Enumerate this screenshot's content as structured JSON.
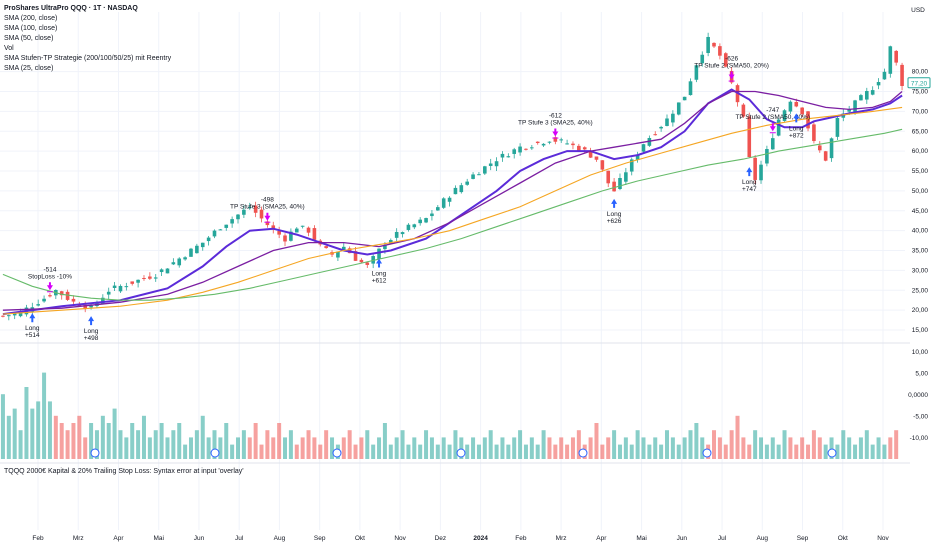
{
  "header": {
    "title": "ProShares UltraPro QQQ · 1T · NASDAQ",
    "indicators": [
      "SMA (200, close)",
      "SMA (100, close)",
      "SMA (50, close)",
      "Vol",
      "SMA Stufen-TP Strategie (200/100/50/25) mit Reentry",
      "SMA (25, close)"
    ]
  },
  "error_text": "TQQQ 2000€ Kapital & 20% Trailing Stop Loss: Syntax error at input 'overlay'",
  "colors": {
    "up": "#26a69a",
    "down": "#ef5350",
    "sma200": "#66bb6a",
    "sma100": "#f5a623",
    "sma50": "#7b1fa2",
    "sma25": "#5b2bd9",
    "arrow_long": "#2962ff",
    "arrow_tp": "#d500f9",
    "price_tag": "#26a69a"
  },
  "chart_data": {
    "type": "line",
    "price_axis": {
      "currency": "USD",
      "ticks": [
        "80,00",
        "75,00",
        "70,00",
        "65,00",
        "60,00",
        "55,00",
        "50,00",
        "45,00",
        "40,00",
        "35,00",
        "30,00",
        "25,00",
        "20,00",
        "15,00"
      ],
      "range": [
        13,
        95
      ]
    },
    "volume_axis": {
      "ticks": [
        "10,00",
        "5,00",
        "0,0000",
        "-5,00",
        "-10,00"
      ]
    },
    "time_axis": {
      "ticks": [
        "Feb",
        "Mrz",
        "Apr",
        "Mai",
        "Jun",
        "Jul",
        "Aug",
        "Sep",
        "Okt",
        "Nov",
        "Dez",
        "2024",
        "Feb",
        "Mrz",
        "Apr",
        "Mai",
        "Jun",
        "Jul",
        "Aug",
        "Sep",
        "Okt",
        "Nov"
      ]
    },
    "last_price": "77,20",
    "price_series": [
      {
        "name": "Close",
        "points": [
          [
            0,
            18.5
          ],
          [
            3,
            19.5
          ],
          [
            7,
            23
          ],
          [
            9,
            25
          ],
          [
            12,
            22
          ],
          [
            15,
            20.5
          ],
          [
            18,
            25
          ],
          [
            22,
            27
          ],
          [
            26,
            29
          ],
          [
            30,
            33
          ],
          [
            34,
            37
          ],
          [
            37,
            41
          ],
          [
            40,
            44
          ],
          [
            42,
            46
          ],
          [
            44,
            43
          ],
          [
            46,
            40
          ],
          [
            48,
            38
          ],
          [
            50,
            41
          ],
          [
            52,
            40
          ],
          [
            54,
            36
          ],
          [
            56,
            34
          ],
          [
            58,
            36
          ],
          [
            60,
            33
          ],
          [
            62,
            31
          ],
          [
            63,
            33
          ],
          [
            65,
            37
          ],
          [
            68,
            40
          ],
          [
            72,
            43
          ],
          [
            76,
            49
          ],
          [
            80,
            54
          ],
          [
            84,
            58
          ],
          [
            88,
            61
          ],
          [
            91,
            62
          ],
          [
            93,
            63
          ],
          [
            96,
            62
          ],
          [
            99,
            60
          ],
          [
            101,
            58
          ],
          [
            103,
            52
          ],
          [
            104,
            50
          ],
          [
            106,
            55
          ],
          [
            109,
            62
          ],
          [
            113,
            68
          ],
          [
            116,
            74
          ],
          [
            118,
            82
          ],
          [
            120,
            88
          ],
          [
            122,
            84
          ],
          [
            124,
            77
          ],
          [
            126,
            68
          ],
          [
            127,
            58
          ],
          [
            128,
            53
          ],
          [
            130,
            60
          ],
          [
            132,
            68
          ],
          [
            134,
            73
          ],
          [
            136,
            70
          ],
          [
            138,
            62
          ],
          [
            140,
            58
          ],
          [
            142,
            68
          ],
          [
            145,
            72
          ],
          [
            148,
            76
          ],
          [
            150,
            80
          ],
          [
            151,
            86
          ],
          [
            152,
            82
          ],
          [
            153,
            77
          ]
        ]
      },
      {
        "name": "SMA (25, close)",
        "points": [
          [
            0,
            19
          ],
          [
            10,
            21
          ],
          [
            20,
            22.5
          ],
          [
            28,
            25.5
          ],
          [
            34,
            31
          ],
          [
            38,
            36
          ],
          [
            42,
            40
          ],
          [
            46,
            40.5
          ],
          [
            50,
            39
          ],
          [
            54,
            37
          ],
          [
            58,
            35
          ],
          [
            62,
            34
          ],
          [
            66,
            35
          ],
          [
            72,
            38
          ],
          [
            78,
            44
          ],
          [
            84,
            50
          ],
          [
            88,
            55
          ],
          [
            92,
            58
          ],
          [
            96,
            60
          ],
          [
            100,
            60
          ],
          [
            104,
            58
          ],
          [
            108,
            59
          ],
          [
            112,
            61
          ],
          [
            116,
            65
          ],
          [
            120,
            72
          ],
          [
            124,
            75.5
          ],
          [
            127,
            73
          ],
          [
            130,
            68
          ],
          [
            133,
            66
          ],
          [
            136,
            66
          ],
          [
            138,
            67.5
          ],
          [
            141,
            68.5
          ],
          [
            144,
            69.5
          ],
          [
            148,
            70.5
          ],
          [
            151,
            72
          ],
          [
            153,
            74
          ]
        ]
      },
      {
        "name": "SMA (50, close)",
        "points": [
          [
            0,
            20
          ],
          [
            10,
            20.5
          ],
          [
            20,
            22
          ],
          [
            28,
            24
          ],
          [
            34,
            27
          ],
          [
            40,
            31
          ],
          [
            46,
            35
          ],
          [
            52,
            37
          ],
          [
            58,
            37
          ],
          [
            64,
            36
          ],
          [
            70,
            38
          ],
          [
            76,
            42
          ],
          [
            82,
            47
          ],
          [
            88,
            52
          ],
          [
            94,
            57
          ],
          [
            100,
            60
          ],
          [
            104,
            61
          ],
          [
            108,
            62
          ],
          [
            112,
            63
          ],
          [
            116,
            67
          ],
          [
            120,
            72
          ],
          [
            124,
            75
          ],
          [
            128,
            75
          ],
          [
            132,
            74
          ],
          [
            136,
            72.5
          ],
          [
            140,
            71
          ],
          [
            144,
            70.5
          ],
          [
            148,
            71
          ],
          [
            151,
            72.5
          ],
          [
            153,
            75
          ]
        ]
      },
      {
        "name": "SMA (100, close)",
        "points": [
          [
            0,
            19
          ],
          [
            10,
            20
          ],
          [
            20,
            21
          ],
          [
            28,
            22.5
          ],
          [
            34,
            24.5
          ],
          [
            40,
            27
          ],
          [
            46,
            30
          ],
          [
            52,
            33
          ],
          [
            58,
            35
          ],
          [
            64,
            36.5
          ],
          [
            70,
            38
          ],
          [
            76,
            40
          ],
          [
            82,
            43
          ],
          [
            88,
            46
          ],
          [
            94,
            50
          ],
          [
            100,
            54
          ],
          [
            106,
            57
          ],
          [
            112,
            59.5
          ],
          [
            118,
            62
          ],
          [
            124,
            64.5
          ],
          [
            130,
            66.5
          ],
          [
            136,
            68
          ],
          [
            142,
            69
          ],
          [
            148,
            70
          ],
          [
            153,
            71
          ]
        ]
      },
      {
        "name": "SMA (200, close)",
        "points": [
          [
            0,
            29
          ],
          [
            5,
            26
          ],
          [
            10,
            24
          ],
          [
            15,
            23
          ],
          [
            20,
            22.5
          ],
          [
            25,
            22.5
          ],
          [
            30,
            23
          ],
          [
            36,
            24
          ],
          [
            42,
            25.5
          ],
          [
            48,
            27.5
          ],
          [
            54,
            29.5
          ],
          [
            60,
            31.5
          ],
          [
            66,
            33.5
          ],
          [
            72,
            35.5
          ],
          [
            78,
            38
          ],
          [
            84,
            41
          ],
          [
            90,
            44
          ],
          [
            96,
            47
          ],
          [
            102,
            50
          ],
          [
            108,
            52.5
          ],
          [
            114,
            54.5
          ],
          [
            120,
            56.5
          ],
          [
            126,
            58
          ],
          [
            132,
            60
          ],
          [
            138,
            61.5
          ],
          [
            144,
            63
          ],
          [
            150,
            64.5
          ],
          [
            153,
            65.5
          ]
        ]
      }
    ],
    "volume": [
      9,
      6,
      7,
      4,
      10,
      7,
      8,
      12,
      8,
      6,
      5,
      4,
      5,
      6,
      3,
      5,
      4,
      6,
      5,
      7,
      4,
      3,
      5,
      4,
      6,
      3,
      4,
      5,
      3,
      4,
      5,
      2,
      3,
      4,
      6,
      3,
      4,
      3,
      5,
      2,
      3,
      4,
      3,
      5,
      2,
      4,
      3,
      5,
      3,
      4,
      2,
      3,
      4,
      3,
      2,
      4,
      3,
      2,
      3,
      4,
      2,
      3,
      4,
      2,
      3,
      5,
      2,
      3,
      4,
      2,
      3,
      2,
      4,
      3,
      2,
      3,
      2,
      4,
      3,
      2,
      3,
      2,
      3,
      4,
      2,
      3,
      2,
      3,
      4,
      2,
      3,
      2,
      4,
      3,
      2,
      3,
      2,
      3,
      4,
      2,
      3,
      5,
      2,
      3,
      4,
      2,
      3,
      2,
      4,
      3,
      2,
      3,
      2,
      4,
      3,
      2,
      3,
      4,
      5,
      3,
      2,
      4,
      3,
      2,
      4,
      6,
      3,
      2,
      4,
      3,
      2,
      3,
      2,
      4,
      3,
      2,
      3,
      2,
      4,
      3,
      2,
      3,
      2,
      4,
      3,
      2,
      3,
      4,
      2,
      3,
      2,
      3,
      4
    ],
    "trades": [
      {
        "type": "long",
        "bar": 5,
        "label1": "Long",
        "label2": "+514"
      },
      {
        "type": "tp",
        "bar": 8,
        "label1": "-514",
        "label2": "StopLoss -10%"
      },
      {
        "type": "long",
        "bar": 15,
        "label1": "Long",
        "label2": "+498"
      },
      {
        "type": "tp",
        "bar": 45,
        "label1": "-498",
        "label2": "TP Stufe 3 (SMA25, 40%)"
      },
      {
        "type": "long",
        "bar": 64,
        "label1": "Long",
        "label2": "+612"
      },
      {
        "type": "tp",
        "bar": 94,
        "label1": "-612",
        "label2": "TP Stufe 3 (SMA25, 40%)"
      },
      {
        "type": "long",
        "bar": 104,
        "label1": "Long",
        "label2": "+626"
      },
      {
        "type": "tp",
        "bar": 124,
        "label1": "-626",
        "label2": "TP Stufe 2 (SMA50, 20%)"
      },
      {
        "type": "long",
        "bar": 127,
        "label1": "Long",
        "label2": "+747"
      },
      {
        "type": "tp",
        "bar": 131,
        "label1": "-747",
        "label2": "TP Stufe 2 (SMA50, 20%)"
      },
      {
        "type": "long",
        "bar": 135,
        "label1": "Long",
        "label2": "+872"
      }
    ]
  }
}
